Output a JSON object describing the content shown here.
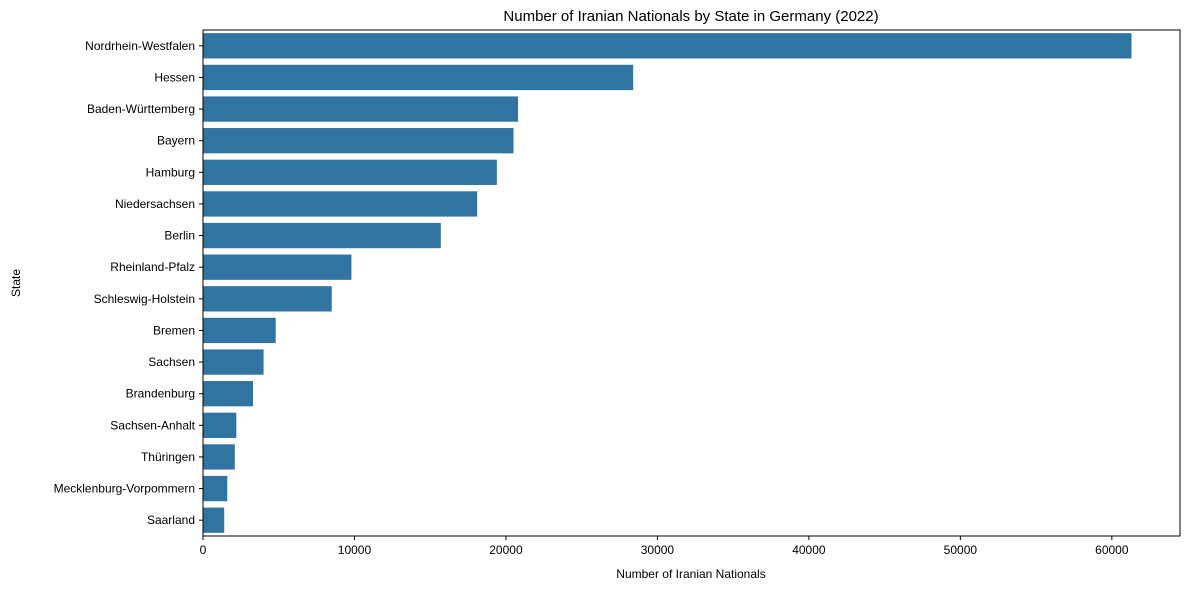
{
  "chart_data": {
    "type": "bar",
    "orientation": "horizontal",
    "title": "Number of Iranian Nationals by State in Germany (2022)",
    "xlabel": "Number of Iranian Nationals",
    "ylabel": "State",
    "categories": [
      "Nordrhein-Westfalen",
      "Hessen",
      "Baden-Württemberg",
      "Bayern",
      "Hamburg",
      "Niedersachsen",
      "Berlin",
      "Rheinland-Pfalz",
      "Schleswig-Holstein",
      "Bremen",
      "Sachsen",
      "Brandenburg",
      "Sachsen-Anhalt",
      "Thüringen",
      "Mecklenburg-Vorpommern",
      "Saarland"
    ],
    "values": [
      61300,
      28400,
      20800,
      20500,
      19400,
      18100,
      15700,
      9800,
      8500,
      4800,
      4000,
      3300,
      2200,
      2100,
      1600,
      1400
    ],
    "xlim": [
      0,
      64500
    ],
    "xticks": [
      0,
      10000,
      20000,
      30000,
      40000,
      50000,
      60000
    ],
    "bar_color": "#3274a1",
    "grid": false
  }
}
